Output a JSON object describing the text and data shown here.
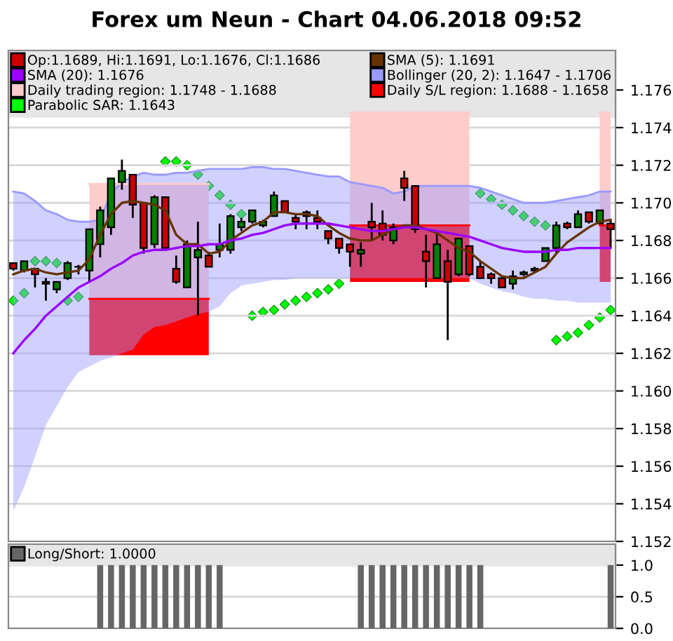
{
  "chart_data": [
    {
      "type": "candlestick",
      "title": "Forex um Neun - Chart 04.06.2018 09:52",
      "categories": [
        null,
        null,
        null,
        null,
        null,
        null,
        null,
        null,
        null,
        null,
        null,
        null,
        null,
        null,
        null,
        null,
        null,
        null,
        null,
        null,
        null,
        null,
        null,
        null,
        null,
        null,
        null,
        null,
        null,
        null,
        null,
        null,
        null,
        null,
        null,
        null,
        null,
        null,
        null,
        null,
        null,
        null,
        null,
        null,
        null,
        null,
        null,
        null,
        null,
        null,
        null,
        null,
        null,
        null,
        null,
        null
      ],
      "series": [
        {
          "type": "candlestick",
          "name": "Op:1.1689, Hi:1.1691, Lo:1.1676, Cl:1.1686",
          "color": "#cc0000",
          "ohlc": [
            [
              1.1668,
              1.1668,
              1.1664,
              1.1665
            ],
            [
              1.1664,
              1.1669,
              1.1663,
              1.1669
            ],
            [
              1.1665,
              1.1665,
              1.1655,
              1.1662
            ],
            [
              1.1658,
              1.166,
              1.1648,
              1.1657
            ],
            [
              1.1654,
              1.1658,
              1.1652,
              1.1658
            ],
            [
              1.166,
              1.1669,
              1.1659,
              1.1668
            ],
            [
              1.1666,
              1.1667,
              1.1662,
              1.1666
            ],
            [
              1.1664,
              1.1686,
              1.1658,
              1.1686
            ],
            [
              1.1678,
              1.1698,
              1.1671,
              1.1696
            ],
            [
              1.1687,
              1.1713,
              1.1683,
              1.1713
            ],
            [
              1.1711,
              1.1723,
              1.1707,
              1.1717
            ],
            [
              1.1715,
              1.1715,
              1.1692,
              1.1699
            ],
            [
              1.17,
              1.17,
              1.1673,
              1.1676
            ],
            [
              1.1678,
              1.1704,
              1.1676,
              1.1703
            ],
            [
              1.1703,
              1.1703,
              1.1676,
              1.1676
            ],
            [
              1.1665,
              1.1672,
              1.1657,
              1.1658
            ],
            [
              1.1655,
              1.168,
              1.1655,
              1.1678
            ],
            [
              1.1671,
              1.169,
              1.164,
              1.1675
            ],
            [
              1.1672,
              1.1674,
              1.1666,
              1.1666
            ],
            [
              1.1675,
              1.1689,
              1.1671,
              1.1678
            ],
            [
              1.1675,
              1.1694,
              1.1673,
              1.1693
            ],
            [
              1.1687,
              1.1692,
              1.1685,
              1.169
            ],
            [
              1.169,
              1.1696,
              1.1689,
              1.1696
            ],
            [
              1.1688,
              1.1691,
              1.1687,
              1.169
            ],
            [
              1.1693,
              1.1706,
              1.1693,
              1.1704
            ],
            [
              1.1701,
              1.1701,
              1.1695,
              1.1695
            ],
            [
              1.1692,
              1.1694,
              1.1686,
              1.169
            ],
            [
              1.1695,
              1.1696,
              1.1686,
              1.1693
            ],
            [
              1.1692,
              1.1696,
              1.1686,
              1.169
            ],
            [
              1.1685,
              1.1685,
              1.1678,
              1.1681
            ],
            [
              1.1681,
              1.1681,
              1.1673,
              1.1676
            ],
            [
              1.1678,
              1.1678,
              1.1666,
              1.1674
            ],
            [
              1.1673,
              1.1679,
              1.1666,
              1.1675
            ],
            [
              1.169,
              1.17,
              1.168,
              1.1687
            ],
            [
              1.1689,
              1.1696,
              1.168,
              1.1683
            ],
            [
              1.168,
              1.1689,
              1.1678,
              1.1687
            ],
            [
              1.1713,
              1.1717,
              1.1701,
              1.1708
            ],
            [
              1.1709,
              1.1709,
              1.1684,
              1.1686
            ],
            [
              1.1674,
              1.1683,
              1.1655,
              1.1669
            ],
            [
              1.166,
              1.1684,
              1.166,
              1.1678
            ],
            [
              1.1669,
              1.1675,
              1.1627,
              1.1658
            ],
            [
              1.1662,
              1.1681,
              1.1661,
              1.1681
            ],
            [
              1.1677,
              1.1677,
              1.1661,
              1.1662
            ],
            [
              1.1666,
              1.1669,
              1.166,
              1.166
            ],
            [
              1.1662,
              1.1663,
              1.1657,
              1.166
            ],
            [
              1.166,
              1.1661,
              1.1655,
              1.1655
            ],
            [
              1.1657,
              1.1664,
              1.1654,
              1.1661
            ],
            [
              1.1662,
              1.1664,
              1.1661,
              1.1663
            ],
            [
              1.1664,
              1.1666,
              1.1663,
              1.1665
            ],
            [
              1.1669,
              1.1676,
              1.1669,
              1.1676
            ],
            [
              1.1676,
              1.169,
              1.1673,
              1.1688
            ],
            [
              1.1689,
              1.169,
              1.1686,
              1.1687
            ],
            [
              1.1687,
              1.1696,
              1.1687,
              1.1694
            ],
            [
              1.1695,
              1.1695,
              1.1689,
              1.169
            ],
            [
              1.1689,
              1.1696,
              1.1689,
              1.1696
            ],
            [
              1.1689,
              1.1691,
              1.1676,
              1.1686
            ]
          ],
          "colors": [
            "#cc0000",
            "#008000",
            "#cc0000",
            "#cc0000",
            "#008000",
            "#008000",
            "#008000",
            "#008000",
            "#008000",
            "#008000",
            "#008000",
            "#cc0000",
            "#cc0000",
            "#008000",
            "#cc0000",
            "#cc0000",
            "#008000",
            "#008000",
            "#cc0000",
            "#008000",
            "#008000",
            "#008000",
            "#008000",
            "#008000",
            "#008000",
            "#cc0000",
            "#cc0000",
            "#cc0000",
            "#cc0000",
            "#cc0000",
            "#cc0000",
            "#cc0000",
            "#008000",
            "#cc0000",
            "#cc0000",
            "#008000",
            "#cc0000",
            "#cc0000",
            "#cc0000",
            "#008000",
            "#cc0000",
            "#008000",
            "#cc0000",
            "#cc0000",
            "#cc0000",
            "#cc0000",
            "#008000",
            "#008000",
            "#008000",
            "#008000",
            "#008000",
            "#cc0000",
            "#008000",
            "#cc0000",
            "#008000",
            "#cc0000"
          ]
        },
        {
          "type": "line",
          "name": "SMA (5): 1.1691",
          "color": "#663300",
          "values": [
            1.1662,
            1.1664,
            1.1665,
            1.1663,
            1.1662,
            1.1663,
            1.1664,
            1.167,
            1.1683,
            1.1694,
            1.17,
            1.1701,
            1.17,
            1.1699,
            1.1696,
            1.1683,
            1.1678,
            1.1678,
            1.1673,
            1.1674,
            1.168,
            1.1684,
            1.1688,
            1.169,
            1.1695,
            1.1695,
            1.1694,
            1.1694,
            1.1693,
            1.1688,
            1.1684,
            1.1681,
            1.168,
            1.168,
            1.1683,
            1.1686,
            1.1688,
            1.1688,
            1.1686,
            1.1684,
            1.168,
            1.1676,
            1.1674,
            1.1669,
            1.1665,
            1.1661,
            1.166,
            1.166,
            1.1663,
            1.1666,
            1.1673,
            1.1679,
            1.1683,
            1.1687,
            1.169,
            1.1691
          ]
        },
        {
          "type": "line",
          "name": "SMA (20): 1.1676",
          "color": "#9900ff",
          "values": [
            1.162,
            1.1627,
            1.1633,
            1.164,
            1.1645,
            1.165,
            1.1655,
            1.1658,
            1.1661,
            1.1665,
            1.1668,
            1.1672,
            1.1674,
            1.1675,
            1.1675,
            1.1676,
            1.1677,
            1.1677,
            1.1678,
            1.1678,
            1.168,
            1.1681,
            1.1683,
            1.1684,
            1.1686,
            1.1688,
            1.1689,
            1.1689,
            1.1689,
            1.1689,
            1.1688,
            1.1687,
            1.1686,
            1.1685,
            1.1685,
            1.1686,
            1.1687,
            1.1687,
            1.1686,
            1.1685,
            1.1684,
            1.1683,
            1.1682,
            1.168,
            1.1678,
            1.1676,
            1.1675,
            1.1674,
            1.1674,
            1.1674,
            1.1675,
            1.1675,
            1.1676,
            1.1676,
            1.1676,
            1.1676
          ]
        },
        {
          "type": "line",
          "name": "Bollinger (20, 2): 1.1647 - 1.1706",
          "color": "#9999ff",
          "values": [
            1.1706,
            1.1705,
            1.1701,
            1.1696,
            1.1694,
            1.1691,
            1.169,
            1.169,
            1.1691,
            1.1705,
            1.1711,
            1.1714,
            1.1716,
            1.1715,
            1.1715,
            1.1716,
            1.1716,
            1.1717,
            1.1718,
            1.1718,
            1.1718,
            1.1718,
            1.1719,
            1.1719,
            1.1718,
            1.1718,
            1.1717,
            1.1716,
            1.1715,
            1.1714,
            1.1714,
            1.1711,
            1.171,
            1.1709,
            1.1708,
            1.1705,
            1.1706,
            1.1709,
            1.1709,
            1.1709,
            1.1709,
            1.1709,
            1.1709,
            1.1708,
            1.1706,
            1.1704,
            1.1702,
            1.17,
            1.17,
            1.17,
            1.1701,
            1.1702,
            1.1703,
            1.1704,
            1.1706,
            1.1706
          ],
          "upper": [
            1.1706,
            1.1705,
            1.1701,
            1.1696,
            1.1694,
            1.1691,
            1.169,
            1.169,
            1.1691,
            1.1705,
            1.1711,
            1.1714,
            1.1716,
            1.1715,
            1.1715,
            1.1716,
            1.1716,
            1.1717,
            1.1718,
            1.1718,
            1.1718,
            1.1718,
            1.1719,
            1.1719,
            1.1718,
            1.1718,
            1.1717,
            1.1716,
            1.1715,
            1.1714,
            1.1714,
            1.1711,
            1.171,
            1.1709,
            1.1708,
            1.1705,
            1.1706,
            1.1709,
            1.1709,
            1.1709,
            1.1709,
            1.1709,
            1.1709,
            1.1708,
            1.1706,
            1.1704,
            1.1702,
            1.17,
            1.17,
            1.17,
            1.1701,
            1.1702,
            1.1703,
            1.1704,
            1.1706,
            1.1706
          ],
          "lower": [
            1.1536,
            1.1549,
            1.1565,
            1.1582,
            1.1592,
            1.1602,
            1.161,
            1.1613,
            1.1616,
            1.1618,
            1.162,
            1.1622,
            1.163,
            1.1634,
            1.1635,
            1.1637,
            1.1639,
            1.1641,
            1.1642,
            1.1645,
            1.1652,
            1.1656,
            1.1657,
            1.1658,
            1.1659,
            1.1659,
            1.166,
            1.166,
            1.166,
            1.166,
            1.166,
            1.166,
            1.166,
            1.166,
            1.166,
            1.166,
            1.166,
            1.166,
            1.166,
            1.166,
            1.166,
            1.166,
            1.166,
            1.1657,
            1.1655,
            1.1653,
            1.1652,
            1.165,
            1.1649,
            1.1649,
            1.1648,
            1.1648,
            1.1647,
            1.1647,
            1.1647,
            1.1647
          ]
        },
        {
          "type": "line",
          "name": "Daily trading region: 1.1748 - 1.1688",
          "color": "#ffcccc",
          "values": [
            null,
            null,
            null,
            null,
            null,
            null,
            null,
            1.171,
            1.171,
            1.171,
            1.171,
            1.171,
            1.171,
            1.171,
            1.171,
            1.171,
            1.171,
            1.171,
            1.171,
            null,
            null,
            null,
            null,
            null,
            null,
            null,
            null,
            null,
            null,
            null,
            null,
            1.1748,
            1.1748,
            1.1748,
            1.1748,
            1.1748,
            1.1748,
            1.1748,
            1.1748,
            1.1748,
            1.1748,
            1.1748,
            1.1748,
            null,
            null,
            null,
            null,
            null,
            null,
            null,
            null,
            null,
            null,
            null,
            1.1748,
            1.1748
          ],
          "upper": [
            null,
            null,
            null,
            null,
            null,
            null,
            null,
            1.171,
            1.171,
            1.171,
            1.171,
            1.171,
            1.171,
            1.171,
            1.171,
            1.171,
            1.171,
            1.171,
            1.171,
            null,
            null,
            null,
            null,
            null,
            null,
            null,
            null,
            null,
            null,
            null,
            null,
            1.1748,
            1.1748,
            1.1748,
            1.1748,
            1.1748,
            1.1748,
            1.1748,
            1.1748,
            1.1748,
            1.1748,
            1.1748,
            1.1748,
            null,
            null,
            null,
            null,
            null,
            null,
            null,
            null,
            null,
            null,
            null,
            1.1748,
            1.1748
          ],
          "lower": [
            null,
            null,
            null,
            null,
            null,
            null,
            null,
            1.1649,
            1.1649,
            1.1649,
            1.1649,
            1.1649,
            1.1649,
            1.1649,
            1.1649,
            1.1649,
            1.1649,
            1.1649,
            1.1649,
            null,
            null,
            null,
            null,
            null,
            null,
            null,
            null,
            null,
            null,
            null,
            null,
            1.1688,
            1.1688,
            1.1688,
            1.1688,
            1.1688,
            1.1688,
            1.1688,
            1.1688,
            1.1688,
            1.1688,
            1.1688,
            1.1688,
            null,
            null,
            null,
            null,
            null,
            null,
            null,
            null,
            null,
            null,
            null,
            1.1688,
            1.1688
          ]
        },
        {
          "type": "line",
          "name": "Daily S/L region: 1.1688 - 1.1658",
          "color": "#ff0000",
          "values": [
            null,
            null,
            null,
            null,
            null,
            null,
            null,
            1.1649,
            1.1649,
            1.1649,
            1.1649,
            1.1649,
            1.1649,
            1.1649,
            1.1649,
            1.1649,
            1.1649,
            1.1649,
            1.1649,
            null,
            null,
            null,
            null,
            null,
            null,
            null,
            null,
            null,
            null,
            null,
            null,
            1.1688,
            1.1688,
            1.1688,
            1.1688,
            1.1688,
            1.1688,
            1.1688,
            1.1688,
            1.1688,
            1.1688,
            1.1688,
            1.1688,
            null,
            null,
            null,
            null,
            null,
            null,
            null,
            null,
            null,
            null,
            null,
            1.1688,
            1.1688
          ],
          "upper": [
            null,
            null,
            null,
            null,
            null,
            null,
            null,
            1.1649,
            1.1649,
            1.1649,
            1.1649,
            1.1649,
            1.1649,
            1.1649,
            1.1649,
            1.1649,
            1.1649,
            1.1649,
            1.1649,
            null,
            null,
            null,
            null,
            null,
            null,
            null,
            null,
            null,
            null,
            null,
            null,
            1.1688,
            1.1688,
            1.1688,
            1.1688,
            1.1688,
            1.1688,
            1.1688,
            1.1688,
            1.1688,
            1.1688,
            1.1688,
            1.1688,
            null,
            null,
            null,
            null,
            null,
            null,
            null,
            null,
            null,
            null,
            null,
            1.1688,
            1.1688
          ],
          "lower": [
            null,
            null,
            null,
            null,
            null,
            null,
            null,
            1.1619,
            1.1619,
            1.1619,
            1.1619,
            1.1619,
            1.1619,
            1.1619,
            1.1619,
            1.1619,
            1.1619,
            1.1619,
            1.1619,
            null,
            null,
            null,
            null,
            null,
            null,
            null,
            null,
            null,
            null,
            null,
            null,
            1.1658,
            1.1658,
            1.1658,
            1.1658,
            1.1658,
            1.1658,
            1.1658,
            1.1658,
            1.1658,
            1.1658,
            1.1658,
            1.1658,
            null,
            null,
            null,
            null,
            null,
            null,
            null,
            null,
            null,
            null,
            null,
            1.1658,
            1.1658
          ]
        },
        {
          "type": "scatter",
          "name": "Parabolic SAR: 1.1643",
          "color": "#00ff00",
          "marker": "diamond",
          "values": [
            1.1648,
            1.1652,
            1.1669,
            1.1669,
            1.1668,
            1.1648,
            1.165,
            null,
            null,
            null,
            null,
            null,
            null,
            null,
            1.1722,
            1.1722,
            1.172,
            1.1715,
            1.1709,
            1.1704,
            1.1699,
            1.1694,
            1.164,
            1.1642,
            1.1643,
            1.1646,
            1.1648,
            1.165,
            1.1652,
            1.1654,
            1.1657,
            null,
            null,
            null,
            null,
            null,
            null,
            null,
            null,
            null,
            null,
            null,
            null,
            1.1705,
            1.1702,
            1.1699,
            1.1696,
            1.1693,
            1.169,
            1.1688,
            1.1627,
            1.1629,
            1.1631,
            1.1635,
            1.1639,
            1.1643
          ]
        }
      ],
      "ylim": [
        1.152,
        1.1781
      ],
      "yticks": [
        1.152,
        1.154,
        1.156,
        1.158,
        {
          "value": 1.16,
          "label": "1.160"
        },
        1.162,
        1.164,
        1.166,
        1.168,
        {
          "value": 1.17,
          "label": "1.170"
        },
        1.172,
        1.174,
        1.176
      ],
      "grid": "y",
      "legend": "top",
      "tick_labels": "y"
    },
    {
      "type": "bar",
      "categories": [
        null,
        null,
        null,
        null,
        null,
        null,
        null,
        null,
        null,
        null,
        null,
        null,
        null,
        null,
        null,
        null,
        null,
        null,
        null,
        null,
        null,
        null,
        null,
        null,
        null,
        null,
        null,
        null,
        null,
        null,
        null,
        null,
        null,
        null,
        null,
        null,
        null,
        null,
        null,
        null,
        null,
        null,
        null,
        null,
        null,
        null,
        null,
        null,
        null,
        null,
        null,
        null,
        null,
        null,
        null,
        null
      ],
      "series": [
        {
          "name": "Long/Short: 1.0000",
          "color": "#666666",
          "values": [
            0,
            0,
            0,
            0,
            0,
            0,
            0,
            0,
            1,
            1,
            1,
            1,
            1,
            1,
            1,
            1,
            1,
            1,
            1,
            1,
            0,
            0,
            0,
            0,
            0,
            0,
            0,
            0,
            0,
            0,
            0,
            0,
            1,
            1,
            1,
            1,
            1,
            1,
            1,
            1,
            1,
            1,
            1,
            1,
            0,
            0,
            0,
            0,
            0,
            0,
            0,
            0,
            0,
            0,
            0,
            1
          ]
        }
      ],
      "ylim": [
        0,
        1.33
      ],
      "yticks": [
        {
          "value": 0,
          "label": "0.0"
        },
        {
          "value": 0.5,
          "label": "0.5"
        },
        {
          "value": 1,
          "label": "1.0"
        }
      ],
      "grid": "y",
      "legend": "top",
      "tick_labels": "y"
    }
  ]
}
